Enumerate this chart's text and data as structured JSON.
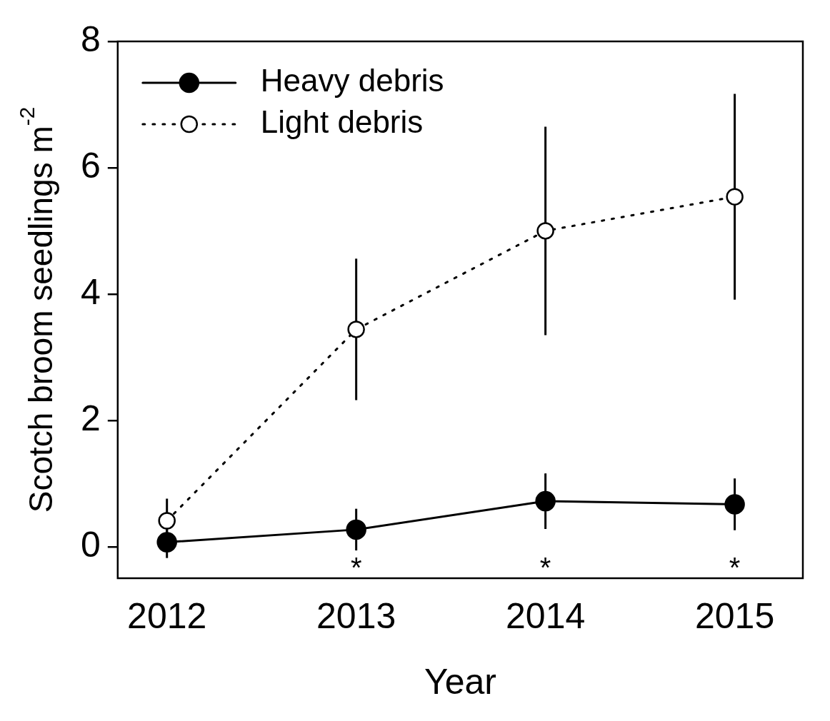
{
  "chart_data": {
    "type": "line",
    "xlabel": "Year",
    "ylabel": "Scotch broom seedlings m$^{-2}$",
    "x": [
      2012,
      2013,
      2014,
      2015
    ],
    "series": [
      {
        "name": "Heavy debris",
        "color": "#000000",
        "values": [
          0.07,
          0.27,
          0.72,
          0.67
        ],
        "errors": [
          0.25,
          0.33,
          0.44,
          0.41
        ],
        "line_style": "solid",
        "marker": "circle"
      },
      {
        "name": "Light debris",
        "color": "#000000",
        "values": [
          0.41,
          3.44,
          5.0,
          5.54
        ],
        "errors": [
          0.35,
          1.12,
          1.65,
          1.63
        ],
        "line_style": "dotted",
        "marker": "circle"
      }
    ],
    "xlim": [
      2011.74,
      2015.36
    ],
    "xticks": [
      2012,
      2013,
      2014,
      2015
    ],
    "ylim": [
      -0.5,
      8
    ],
    "yticks": [
      0,
      2,
      4,
      6,
      8
    ],
    "annotations": [
      "*",
      "*",
      "*"
    ],
    "grid": false,
    "legend": "top left"
  }
}
